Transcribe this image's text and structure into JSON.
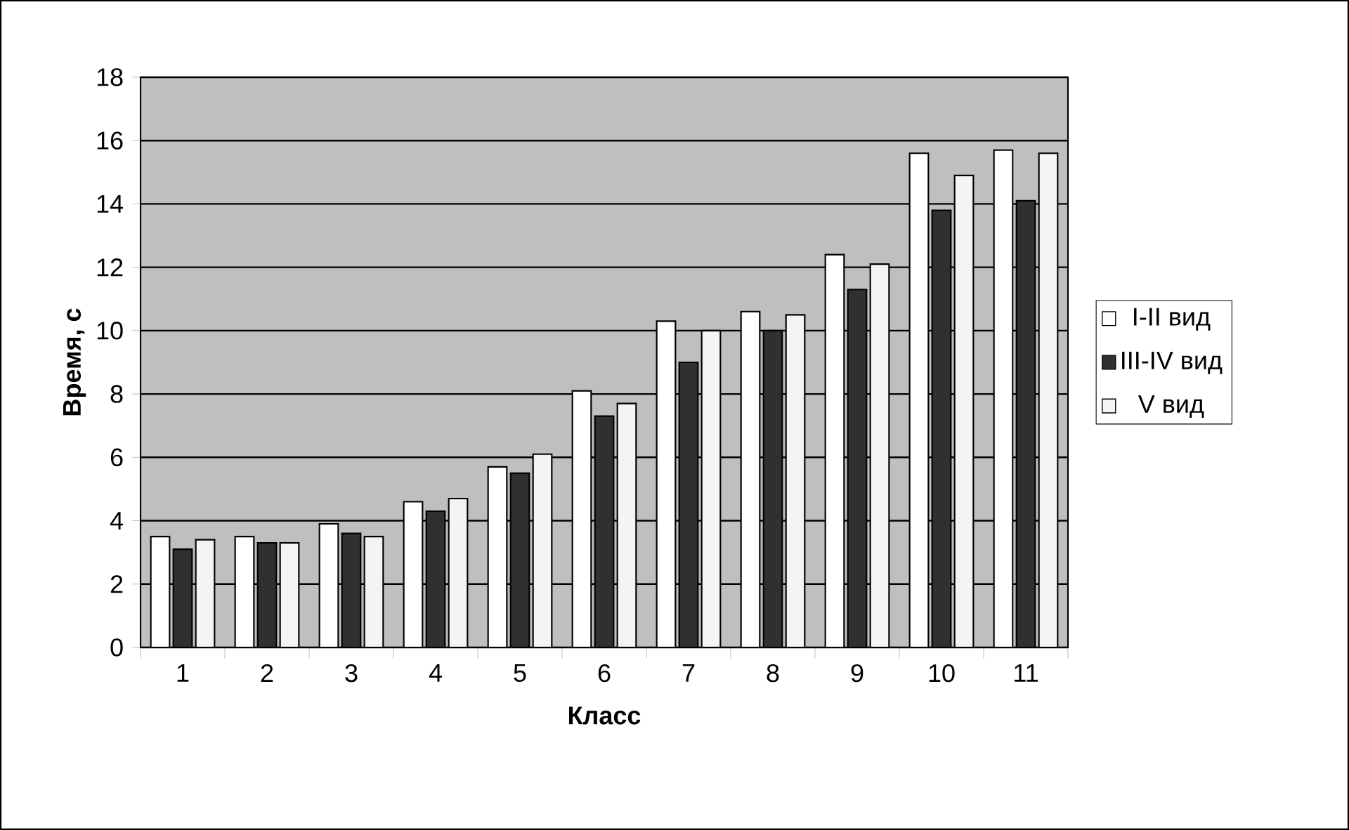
{
  "chart_data": {
    "type": "bar",
    "xlabel": "Класс",
    "ylabel": "Время, с",
    "categories": [
      "1",
      "2",
      "3",
      "4",
      "5",
      "6",
      "7",
      "8",
      "9",
      "10",
      "11"
    ],
    "series": [
      {
        "name": "I-II вид",
        "color": "#ffffff",
        "values": [
          3.5,
          3.5,
          3.9,
          4.6,
          5.7,
          8.1,
          10.3,
          10.6,
          12.4,
          15.6,
          15.7
        ]
      },
      {
        "name": "III-IV вид",
        "color": "#303030",
        "values": [
          3.1,
          3.3,
          3.6,
          4.3,
          5.5,
          7.3,
          9.0,
          10.0,
          11.3,
          13.8,
          14.1
        ]
      },
      {
        "name": "V вид",
        "color": "#f4f4f4",
        "values": [
          3.4,
          3.3,
          3.5,
          4.7,
          6.1,
          7.7,
          10.0,
          10.5,
          12.1,
          14.9,
          15.6
        ]
      }
    ],
    "ylim": [
      0,
      18
    ],
    "yticks": [
      0,
      2,
      4,
      6,
      8,
      10,
      12,
      14,
      16,
      18
    ],
    "grid": "y",
    "legend": "right"
  }
}
